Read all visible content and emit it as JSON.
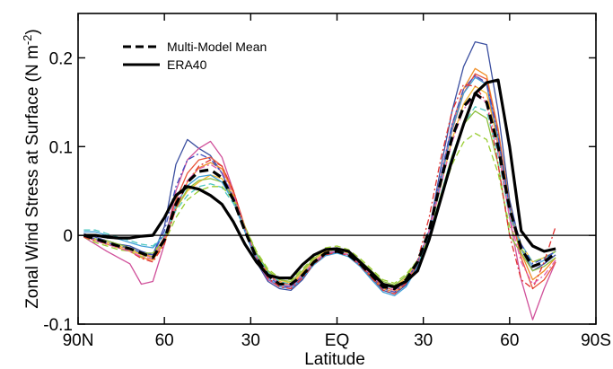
{
  "chart_data": {
    "type": "line",
    "xlabel": "Latitude",
    "ylabel": "Zonal Wind Stress at Surface (N m",
    "ylabel_superscript": "-2",
    "ylabel_close": ")",
    "xlim": [
      -90,
      90
    ],
    "ylim": [
      -0.1,
      0.25
    ],
    "x_ticks": [
      {
        "value": -90,
        "label": "90N"
      },
      {
        "value": -60,
        "label": "60"
      },
      {
        "value": -30,
        "label": "30"
      },
      {
        "value": 0,
        "label": "EQ"
      },
      {
        "value": 30,
        "label": "30"
      },
      {
        "value": 60,
        "label": "60"
      },
      {
        "value": 90,
        "label": "90S"
      }
    ],
    "y_ticks": [
      {
        "value": -0.1,
        "label": "-0.1"
      },
      {
        "value": 0,
        "label": "0"
      },
      {
        "value": 0.1,
        "label": "0.1"
      },
      {
        "value": 0.2,
        "label": "0.2"
      }
    ],
    "zero_line": true,
    "grid": false,
    "legend": {
      "position": "top-left",
      "entries": [
        {
          "label": "Multi-Model Mean",
          "style": "dashed",
          "color": "#000000"
        },
        {
          "label": "ERA40",
          "style": "solid",
          "color": "#000000"
        }
      ]
    },
    "x": [
      -88,
      -84,
      -80,
      -76,
      -72,
      -68,
      -64,
      -60,
      -56,
      -52,
      -48,
      -44,
      -40,
      -36,
      -32,
      -28,
      -24,
      -20,
      -16,
      -12,
      -8,
      -4,
      0,
      4,
      8,
      12,
      16,
      20,
      24,
      28,
      32,
      36,
      40,
      44,
      48,
      52,
      56,
      60,
      64,
      68,
      72,
      76
    ],
    "series": [
      {
        "name": "Multi-Model Mean",
        "style": "dashed",
        "color": "#000000",
        "width": 3.2,
        "values": [
          0.0,
          -0.004,
          -0.008,
          -0.012,
          -0.015,
          -0.02,
          -0.025,
          -0.005,
          0.035,
          0.06,
          0.072,
          0.074,
          0.065,
          0.04,
          0.005,
          -0.025,
          -0.045,
          -0.055,
          -0.055,
          -0.045,
          -0.03,
          -0.02,
          -0.018,
          -0.022,
          -0.032,
          -0.045,
          -0.058,
          -0.06,
          -0.05,
          -0.03,
          0.005,
          0.06,
          0.11,
          0.145,
          0.16,
          0.15,
          0.1,
          0.03,
          -0.015,
          -0.035,
          -0.03,
          -0.02
        ]
      },
      {
        "name": "ERA40",
        "style": "solid",
        "color": "#000000",
        "width": 3.2,
        "values": [
          0.0,
          0.0,
          -0.002,
          -0.003,
          -0.003,
          -0.001,
          0.0,
          0.02,
          0.045,
          0.055,
          0.052,
          0.045,
          0.035,
          0.015,
          -0.01,
          -0.03,
          -0.045,
          -0.048,
          -0.048,
          -0.033,
          -0.022,
          -0.016,
          -0.015,
          -0.018,
          -0.03,
          -0.042,
          -0.055,
          -0.058,
          -0.052,
          -0.04,
          -0.005,
          0.04,
          0.085,
          0.125,
          0.16,
          0.172,
          0.175,
          0.1,
          0.005,
          -0.012,
          -0.018,
          -0.015
        ]
      }
    ],
    "model_runs": [
      {
        "color": "#3b4fa0",
        "style": "solid",
        "values": [
          0.002,
          -0.002,
          -0.006,
          -0.01,
          -0.012,
          -0.018,
          -0.022,
          0.01,
          0.08,
          0.108,
          0.098,
          0.09,
          0.07,
          0.04,
          0.005,
          -0.03,
          -0.052,
          -0.06,
          -0.062,
          -0.05,
          -0.032,
          -0.022,
          -0.019,
          -0.022,
          -0.034,
          -0.048,
          -0.062,
          -0.066,
          -0.056,
          -0.034,
          0.005,
          0.075,
          0.14,
          0.19,
          0.218,
          0.215,
          0.14,
          0.04,
          -0.015,
          -0.04,
          -0.032,
          -0.022
        ]
      },
      {
        "color": "#d0509a",
        "style": "solid",
        "values": [
          -0.002,
          -0.01,
          -0.018,
          -0.025,
          -0.032,
          -0.055,
          -0.052,
          -0.01,
          0.05,
          0.085,
          0.098,
          0.106,
          0.088,
          0.05,
          0.008,
          -0.028,
          -0.05,
          -0.058,
          -0.058,
          -0.046,
          -0.03,
          -0.02,
          -0.017,
          -0.02,
          -0.03,
          -0.044,
          -0.056,
          -0.06,
          -0.05,
          -0.03,
          0.005,
          0.065,
          0.125,
          0.165,
          0.18,
          0.17,
          0.1,
          0.02,
          -0.05,
          -0.095,
          -0.06,
          -0.03
        ]
      },
      {
        "color": "#f0902a",
        "style": "solid",
        "values": [
          0.0,
          -0.006,
          -0.01,
          -0.014,
          -0.018,
          -0.025,
          -0.028,
          -0.008,
          0.03,
          0.06,
          0.076,
          0.082,
          0.075,
          0.048,
          0.01,
          -0.022,
          -0.042,
          -0.052,
          -0.056,
          -0.044,
          -0.03,
          -0.02,
          -0.018,
          -0.022,
          -0.033,
          -0.047,
          -0.06,
          -0.064,
          -0.054,
          -0.032,
          0.004,
          0.062,
          0.12,
          0.165,
          0.188,
          0.18,
          0.12,
          0.035,
          -0.02,
          -0.05,
          -0.04,
          -0.025
        ]
      },
      {
        "color": "#e8553a",
        "style": "solid",
        "values": [
          -0.001,
          -0.004,
          -0.008,
          -0.012,
          -0.016,
          -0.022,
          -0.024,
          -0.002,
          0.04,
          0.07,
          0.085,
          0.088,
          0.078,
          0.05,
          0.01,
          -0.024,
          -0.044,
          -0.054,
          -0.056,
          -0.045,
          -0.031,
          -0.021,
          -0.018,
          -0.022,
          -0.032,
          -0.046,
          -0.058,
          -0.062,
          -0.052,
          -0.032,
          0.004,
          0.06,
          0.118,
          0.16,
          0.182,
          0.176,
          0.118,
          0.03,
          -0.025,
          -0.06,
          -0.05,
          -0.03
        ]
      },
      {
        "color": "#f2b830",
        "style": "solid",
        "values": [
          0.001,
          -0.004,
          -0.008,
          -0.012,
          -0.016,
          -0.022,
          -0.022,
          -0.004,
          0.03,
          0.05,
          0.06,
          0.068,
          0.064,
          0.045,
          0.01,
          -0.02,
          -0.04,
          -0.05,
          -0.054,
          -0.042,
          -0.028,
          -0.018,
          -0.016,
          -0.02,
          -0.03,
          -0.042,
          -0.054,
          -0.058,
          -0.048,
          -0.03,
          0.002,
          0.055,
          0.108,
          0.148,
          0.168,
          0.16,
          0.105,
          0.03,
          -0.01,
          -0.03,
          -0.025,
          -0.018
        ]
      },
      {
        "color": "#8fc040",
        "style": "solid",
        "values": [
          0.0,
          -0.004,
          -0.006,
          -0.01,
          -0.014,
          -0.02,
          -0.02,
          -0.004,
          0.03,
          0.052,
          0.062,
          0.064,
          0.06,
          0.042,
          0.01,
          -0.02,
          -0.04,
          -0.05,
          -0.052,
          -0.04,
          -0.026,
          -0.016,
          -0.014,
          -0.018,
          -0.028,
          -0.04,
          -0.052,
          -0.056,
          -0.046,
          -0.028,
          0.0,
          0.045,
          0.09,
          0.125,
          0.14,
          0.132,
          0.08,
          0.0,
          -0.02,
          -0.04,
          -0.035,
          -0.025
        ]
      },
      {
        "color": "#40a0d8",
        "style": "solid",
        "values": [
          0.004,
          0.004,
          0.0,
          -0.004,
          -0.008,
          -0.012,
          -0.014,
          0.0,
          0.034,
          0.056,
          0.066,
          0.068,
          0.06,
          0.038,
          0.004,
          -0.028,
          -0.048,
          -0.058,
          -0.06,
          -0.048,
          -0.033,
          -0.023,
          -0.02,
          -0.024,
          -0.035,
          -0.05,
          -0.064,
          -0.068,
          -0.058,
          -0.036,
          0.0,
          0.06,
          0.12,
          0.16,
          0.178,
          0.17,
          0.11,
          0.03,
          -0.015,
          -0.035,
          -0.028,
          -0.018
        ]
      },
      {
        "color": "#50c8c0",
        "style": "dashed",
        "values": [
          0.006,
          0.006,
          0.002,
          -0.002,
          -0.006,
          -0.01,
          -0.012,
          0.0,
          0.028,
          0.045,
          0.055,
          0.058,
          0.054,
          0.036,
          0.006,
          -0.022,
          -0.042,
          -0.052,
          -0.055,
          -0.044,
          -0.03,
          -0.02,
          -0.017,
          -0.021,
          -0.031,
          -0.044,
          -0.056,
          -0.06,
          -0.05,
          -0.032,
          -0.002,
          0.045,
          0.09,
          0.125,
          0.145,
          0.14,
          0.09,
          0.02,
          -0.01,
          -0.03,
          -0.025,
          -0.018
        ]
      },
      {
        "color": "#9acd32",
        "style": "dashed",
        "values": [
          -0.002,
          -0.008,
          -0.012,
          -0.016,
          -0.018,
          -0.024,
          -0.024,
          -0.008,
          0.02,
          0.04,
          0.05,
          0.055,
          0.055,
          0.04,
          0.01,
          -0.018,
          -0.038,
          -0.048,
          -0.05,
          -0.038,
          -0.024,
          -0.014,
          -0.012,
          -0.016,
          -0.026,
          -0.038,
          -0.05,
          -0.054,
          -0.044,
          -0.028,
          -0.004,
          0.04,
          0.08,
          0.105,
          0.115,
          0.108,
          0.07,
          0.01,
          -0.015,
          -0.03,
          -0.025,
          -0.018
        ]
      },
      {
        "color": "#e03030",
        "style": "dashdot",
        "values": [
          -0.002,
          -0.006,
          -0.01,
          -0.014,
          -0.018,
          -0.026,
          -0.03,
          -0.01,
          0.03,
          0.06,
          0.078,
          0.085,
          0.078,
          0.05,
          0.008,
          -0.026,
          -0.048,
          -0.058,
          -0.06,
          -0.048,
          -0.032,
          -0.022,
          -0.019,
          -0.023,
          -0.034,
          -0.048,
          -0.062,
          -0.066,
          -0.054,
          -0.028,
          0.02,
          0.085,
          0.14,
          0.17,
          0.168,
          0.15,
          0.08,
          0.0,
          -0.05,
          -0.06,
          -0.03,
          0.01
        ]
      },
      {
        "color": "#4050c0",
        "style": "dashdot",
        "values": [
          0.0,
          -0.004,
          -0.008,
          -0.012,
          -0.014,
          -0.02,
          -0.022,
          0.005,
          0.055,
          0.085,
          0.092,
          0.086,
          0.07,
          0.042,
          0.006,
          -0.026,
          -0.046,
          -0.056,
          -0.058,
          -0.046,
          -0.031,
          -0.021,
          -0.018,
          -0.022,
          -0.033,
          -0.046,
          -0.06,
          -0.064,
          -0.052,
          -0.03,
          0.006,
          0.066,
          0.125,
          0.165,
          0.18,
          0.172,
          0.112,
          0.032,
          -0.01,
          -0.032,
          -0.026,
          -0.018
        ]
      },
      {
        "color": "#e060b0",
        "style": "dashdot",
        "values": [
          0.0,
          -0.006,
          -0.01,
          -0.014,
          -0.018,
          -0.024,
          -0.026,
          -0.004,
          0.035,
          0.062,
          0.075,
          0.08,
          0.072,
          0.046,
          0.008,
          -0.024,
          -0.044,
          -0.054,
          -0.056,
          -0.045,
          -0.03,
          -0.02,
          -0.018,
          -0.022,
          -0.032,
          -0.045,
          -0.058,
          -0.062,
          -0.052,
          -0.03,
          0.004,
          0.055,
          0.105,
          0.142,
          0.158,
          0.15,
          0.095,
          0.02,
          -0.03,
          -0.055,
          -0.045,
          -0.028
        ]
      }
    ]
  }
}
